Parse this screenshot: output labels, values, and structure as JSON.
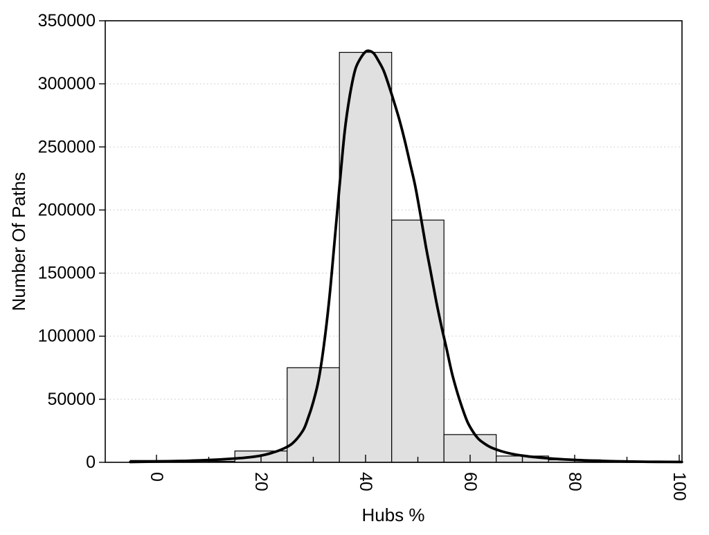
{
  "figure": {
    "background": "#ffffff",
    "frame_color": "#000000",
    "bar_fill": "#e0e0e0",
    "bar_stroke": "#000000",
    "curve_color": "#000000",
    "grid_color": "#c8c8c8",
    "text_color": "#000000"
  },
  "chart_data": {
    "type": "bar",
    "subtype": "histogram_with_density_curve",
    "title": "",
    "xlabel": "Hubs %",
    "ylabel": "Number Of Paths",
    "xlim": [
      -9.8,
      100.53
    ],
    "ylim": [
      0,
      350000
    ],
    "legend": "none",
    "grid": {
      "style": "horizontal dotted",
      "y_values": [
        50000,
        100000,
        150000,
        200000,
        250000,
        300000
      ]
    },
    "x_major_ticks": [
      0,
      20,
      40,
      60,
      80,
      100
    ],
    "x_major_tick_labels": [
      "0",
      "20",
      "40",
      "60",
      "80",
      "100"
    ],
    "x_minor_ticks": [
      10,
      30,
      50,
      70,
      90
    ],
    "x_tick_label_rotation_deg": 90,
    "y_ticks": [
      0,
      50000,
      100000,
      150000,
      200000,
      250000,
      300000,
      350000
    ],
    "y_tick_labels": [
      "0",
      "50000",
      "100000",
      "150000",
      "200000",
      "250000",
      "300000",
      "350000"
    ],
    "histogram": {
      "bin_width": 10,
      "bin_centers": [
        0,
        10,
        20,
        30,
        40,
        50,
        60,
        70,
        80,
        90
      ],
      "counts": [
        1500,
        800,
        9000,
        75000,
        325000,
        192000,
        22000,
        5000,
        2000,
        400
      ]
    },
    "density_curve": {
      "points": [
        [
          -5,
          300
        ],
        [
          0,
          650
        ],
        [
          5,
          1100
        ],
        [
          10,
          1800
        ],
        [
          15,
          3000
        ],
        [
          18,
          4100
        ],
        [
          20,
          5300
        ],
        [
          22,
          7400
        ],
        [
          24,
          10300
        ],
        [
          26,
          15000
        ],
        [
          28,
          25000
        ],
        [
          29,
          35000
        ],
        [
          30,
          48000
        ],
        [
          31,
          65000
        ],
        [
          32,
          92000
        ],
        [
          33,
          127000
        ],
        [
          34,
          172000
        ],
        [
          35,
          218000
        ],
        [
          36,
          262000
        ],
        [
          37,
          291000
        ],
        [
          38,
          311000
        ],
        [
          39,
          320000
        ],
        [
          40,
          325500
        ],
        [
          40.8,
          326000
        ],
        [
          41.6,
          324000
        ],
        [
          42.5,
          318000
        ],
        [
          43.5,
          310000
        ],
        [
          44.5,
          298000
        ],
        [
          45.5,
          285000
        ],
        [
          46.5,
          271000
        ],
        [
          47.5,
          255000
        ],
        [
          48.5,
          237000
        ],
        [
          49.5,
          219000
        ],
        [
          50.5,
          196000
        ],
        [
          51.5,
          172000
        ],
        [
          52.5,
          150000
        ],
        [
          53.5,
          128000
        ],
        [
          54.5,
          108000
        ],
        [
          55.5,
          90000
        ],
        [
          56.5,
          71000
        ],
        [
          57.5,
          56000
        ],
        [
          58.5,
          43000
        ],
        [
          59.5,
          32000
        ],
        [
          60.5,
          24500
        ],
        [
          61.5,
          19000
        ],
        [
          62.5,
          15500
        ],
        [
          64,
          11800
        ],
        [
          66,
          8800
        ],
        [
          68,
          6700
        ],
        [
          70,
          5300
        ],
        [
          72,
          4300
        ],
        [
          74,
          3500
        ],
        [
          77,
          2600
        ],
        [
          80,
          1900
        ],
        [
          84,
          1250
        ],
        [
          88,
          820
        ],
        [
          92,
          540
        ],
        [
          96,
          360
        ],
        [
          100.5,
          250
        ]
      ]
    }
  }
}
